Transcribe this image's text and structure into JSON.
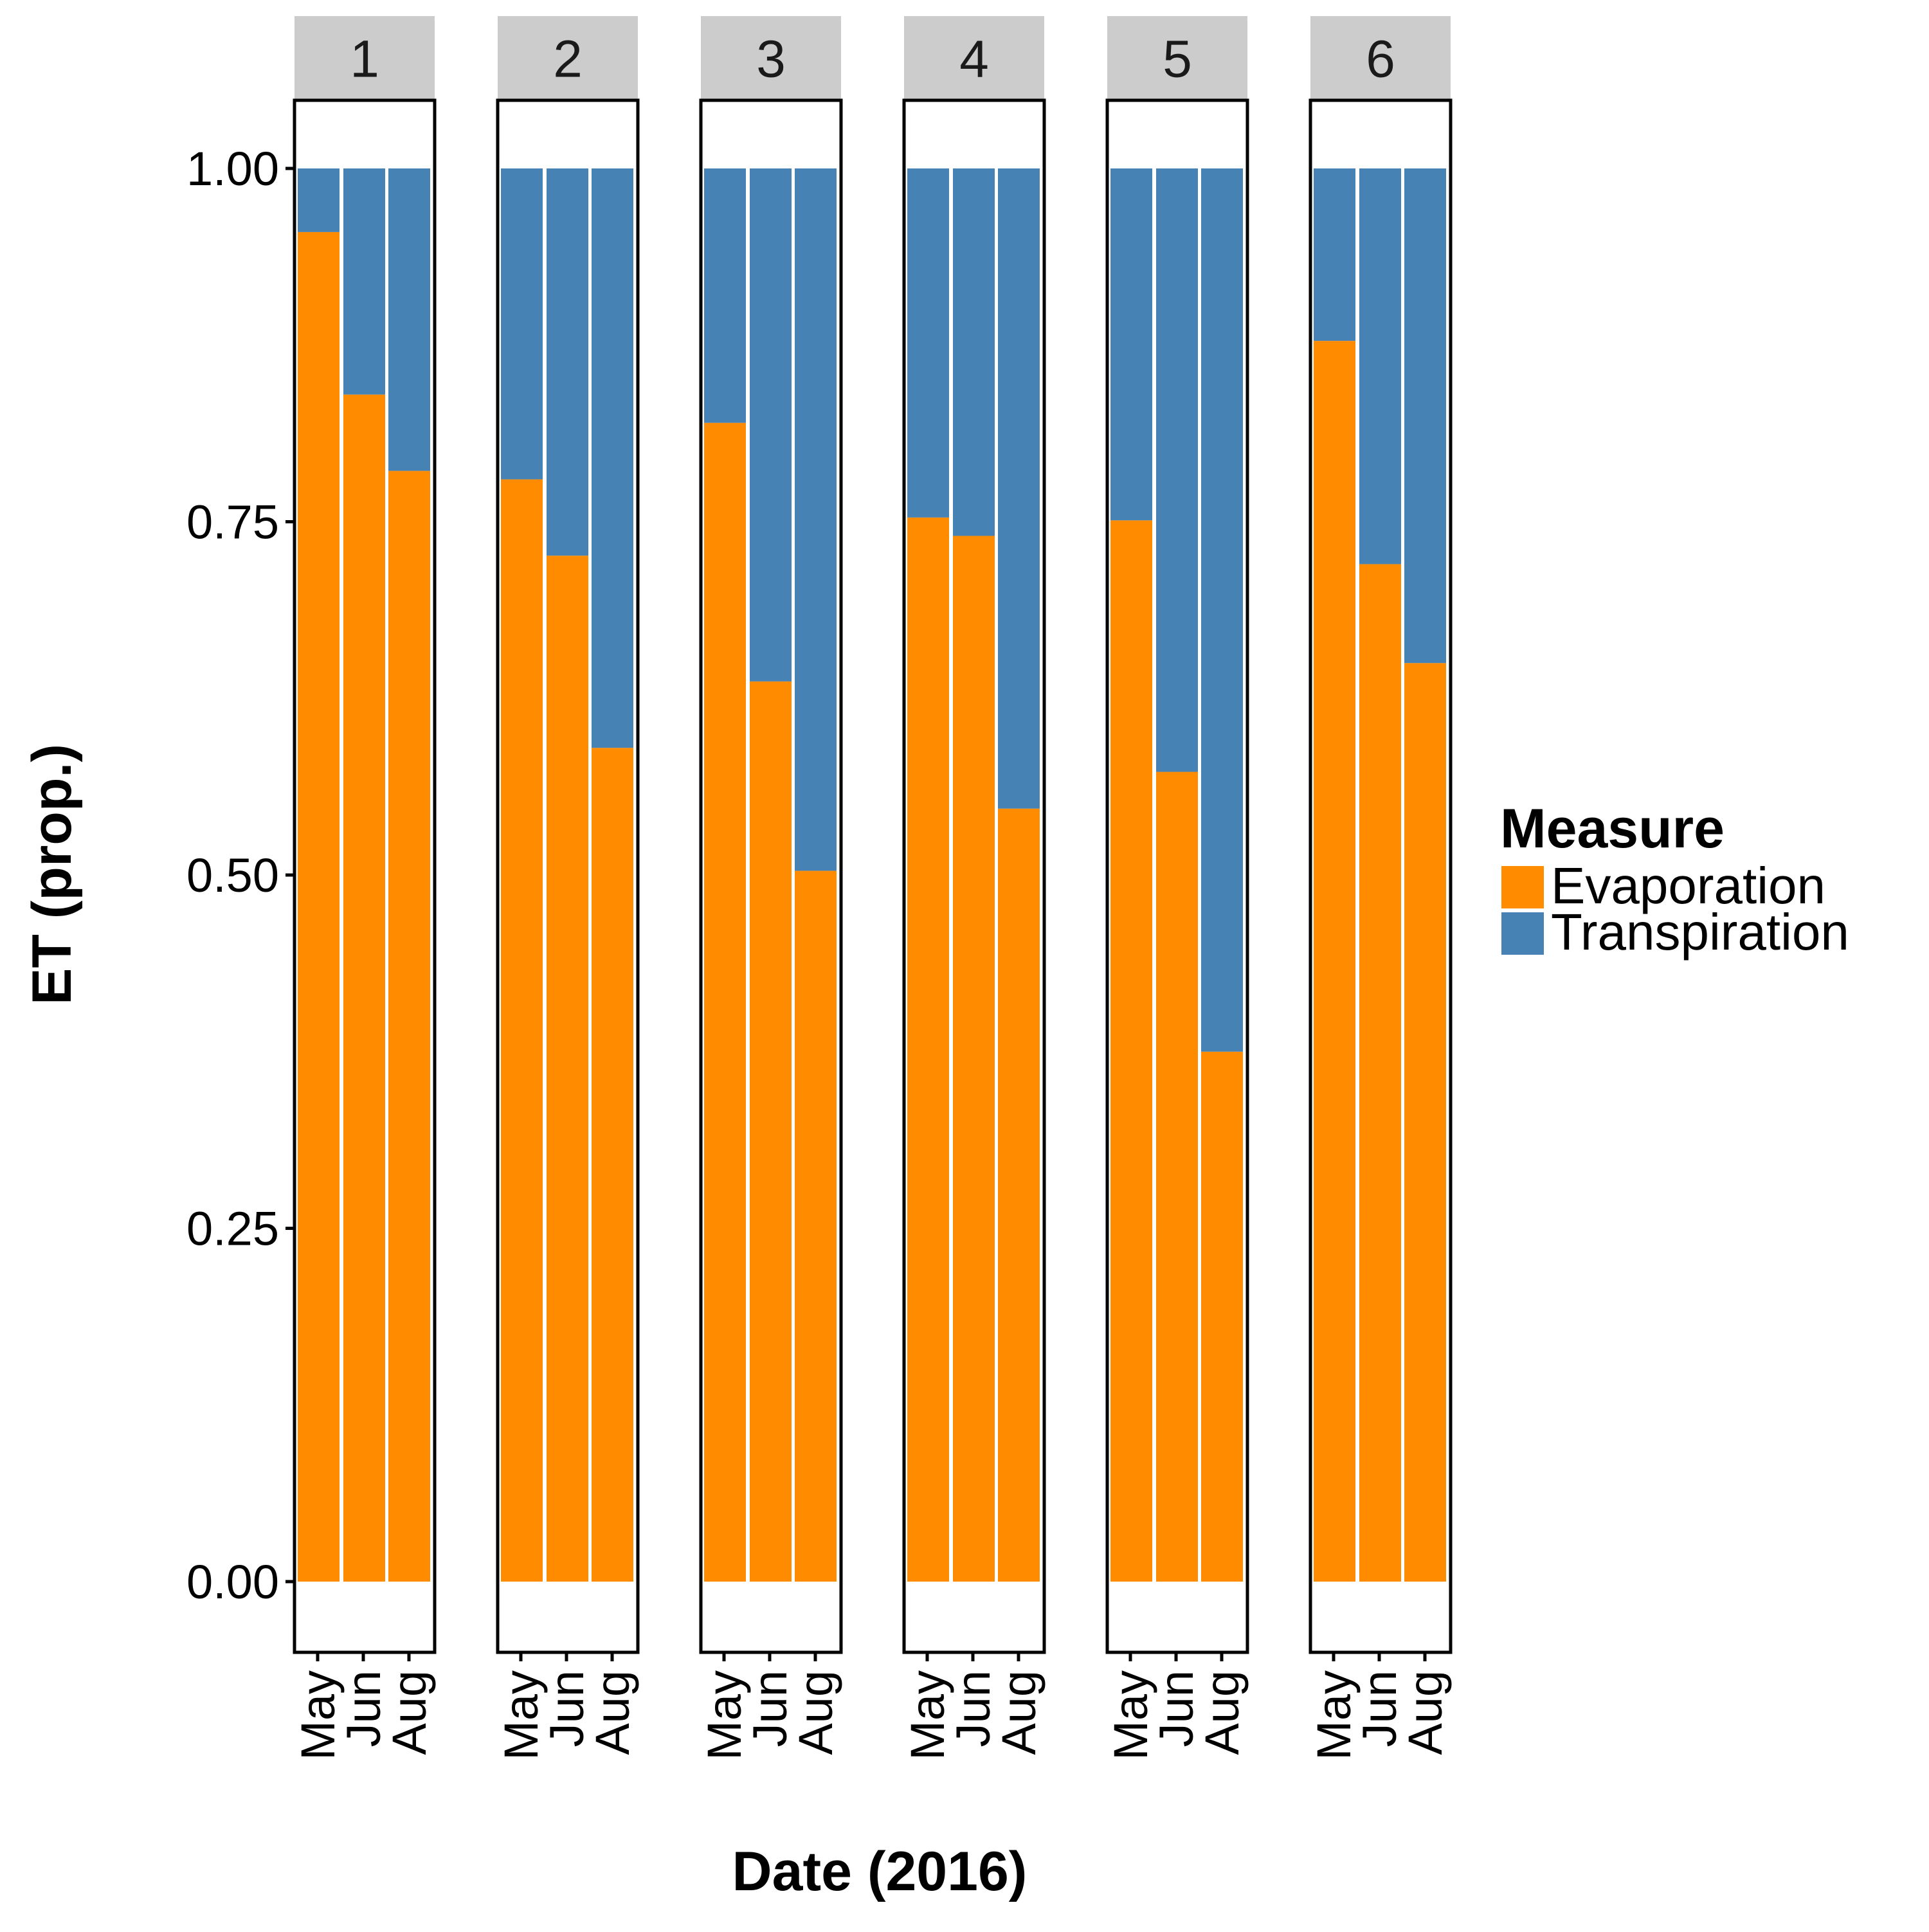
{
  "chart_data": {
    "type": "bar",
    "stacked": true,
    "facets": [
      "1",
      "2",
      "3",
      "4",
      "5",
      "6"
    ],
    "categories": [
      "May",
      "Jun",
      "Aug"
    ],
    "xlabel": "Date (2016)",
    "ylabel": "ET (prop.)",
    "ylim": [
      0,
      1
    ],
    "yticks": [
      "0.00",
      "0.25",
      "0.50",
      "0.75",
      "1.00"
    ],
    "legend": {
      "title": "Measure",
      "position": "right",
      "entries": [
        {
          "name": "Evaporation",
          "color": "#ff8c00"
        },
        {
          "name": "Transpiration",
          "color": "#4682b4"
        }
      ]
    },
    "grid": false,
    "series": [
      {
        "name": "Evaporation",
        "color": "#ff8c00",
        "values_by_facet": {
          "1": [
            0.955,
            0.84,
            0.786
          ],
          "2": [
            0.78,
            0.726,
            0.59
          ],
          "3": [
            0.82,
            0.637,
            0.503
          ],
          "4": [
            0.753,
            0.74,
            0.547
          ],
          "5": [
            0.751,
            0.573,
            0.375
          ],
          "6": [
            0.878,
            0.72,
            0.65
          ]
        }
      },
      {
        "name": "Transpiration",
        "color": "#4682b4",
        "values_by_facet": {
          "1": [
            0.045,
            0.16,
            0.214
          ],
          "2": [
            0.22,
            0.274,
            0.41
          ],
          "3": [
            0.18,
            0.363,
            0.497
          ],
          "4": [
            0.247,
            0.26,
            0.453
          ],
          "5": [
            0.249,
            0.427,
            0.625
          ],
          "6": [
            0.122,
            0.28,
            0.35
          ]
        }
      }
    ],
    "colors": {
      "strip_background": "#cccccc",
      "panel_border": "#000000",
      "bar_separator": "#ffffff"
    }
  }
}
